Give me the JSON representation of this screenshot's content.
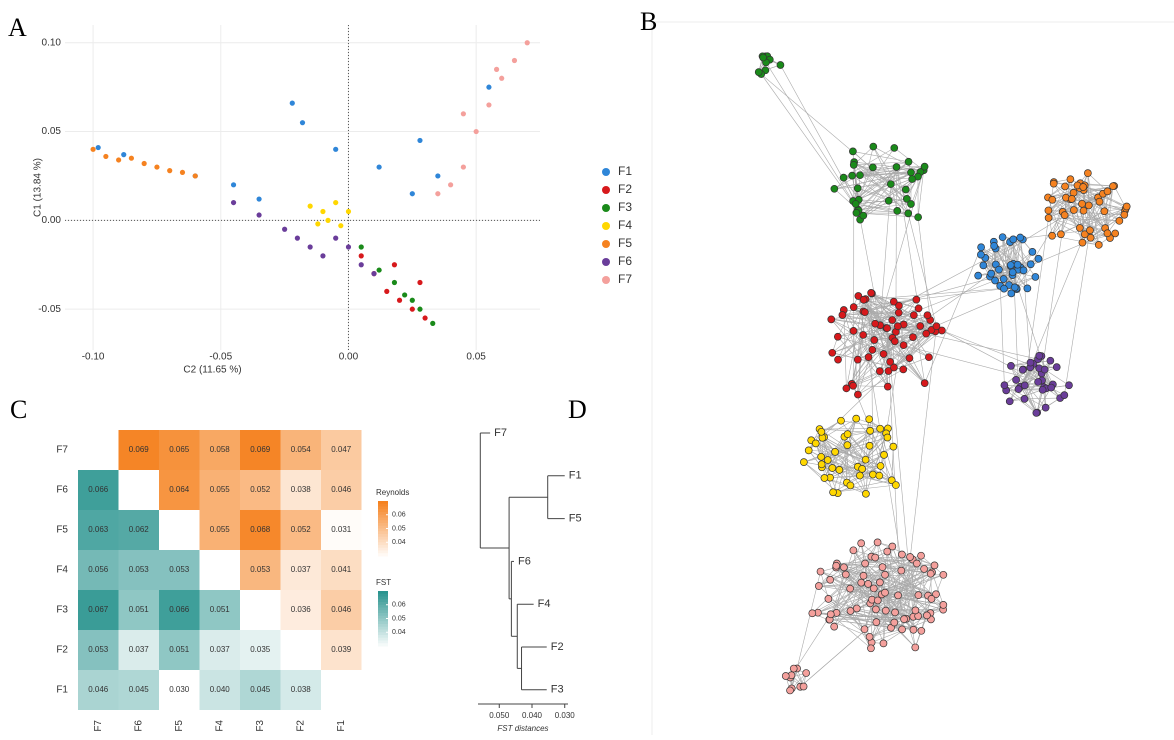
{
  "chart_data": [
    {
      "type": "scatter",
      "label": "A",
      "xlabel": "C2 (11.65 %)",
      "ylabel": "C1 (13.84 %)",
      "xlim": [
        -0.111,
        0.075
      ],
      "ylim": [
        -0.073,
        0.11
      ],
      "xticks": [
        {
          "value": -0.1,
          "label": "-0.10"
        },
        -0.05,
        {
          "value": 0,
          "label": "0.00"
        },
        0.05
      ],
      "yticks": [
        -0.05,
        {
          "value": 0,
          "label": "0.00"
        },
        0.05,
        {
          "value": 0.1,
          "label": "0.10"
        }
      ],
      "grid": true,
      "zero_lines": true,
      "legend": "right",
      "series": [
        {
          "name": "F1",
          "color": "#2f86d8",
          "x": [
            -0.098,
            -0.088,
            -0.06,
            -0.045,
            -0.035,
            -0.022,
            -0.018,
            -0.005,
            0.012,
            0.025,
            0.035,
            0.028,
            0.055
          ],
          "y": [
            0.041,
            0.037,
            0.025,
            0.02,
            0.012,
            0.066,
            0.055,
            0.04,
            0.03,
            0.015,
            0.025,
            0.045,
            0.075
          ]
        },
        {
          "name": "F2",
          "color": "#d7191c",
          "x": [
            0.005,
            0.01,
            0.015,
            0.02,
            0.025,
            0.03,
            0.018,
            0.028
          ],
          "y": [
            -0.02,
            -0.03,
            -0.04,
            -0.045,
            -0.05,
            -0.055,
            -0.025,
            -0.035
          ]
        },
        {
          "name": "F3",
          "color": "#1a8a1a",
          "x": [
            0.005,
            0.012,
            0.018,
            0.022,
            0.028,
            0.033,
            0.025
          ],
          "y": [
            -0.015,
            -0.028,
            -0.035,
            -0.042,
            -0.05,
            -0.058,
            -0.045
          ]
        },
        {
          "name": "F4",
          "color": "#ffd700",
          "x": [
            -0.015,
            -0.01,
            -0.008,
            -0.005,
            -0.003,
            0,
            -0.012
          ],
          "y": [
            0.008,
            0.005,
            0,
            0.01,
            -0.003,
            0.005,
            -0.002
          ]
        },
        {
          "name": "F5",
          "color": "#f58220",
          "x": [
            -0.1,
            -0.095,
            -0.09,
            -0.085,
            -0.08,
            -0.075,
            -0.07,
            -0.065,
            -0.06
          ],
          "y": [
            0.04,
            0.036,
            0.034,
            0.035,
            0.032,
            0.03,
            0.028,
            0.027,
            0.025
          ]
        },
        {
          "name": "F6",
          "color": "#6a3d9a",
          "x": [
            -0.045,
            -0.035,
            -0.025,
            -0.02,
            -0.015,
            -0.01,
            0,
            0.005,
            0.01,
            -0.005
          ],
          "y": [
            0.01,
            0.003,
            -0.005,
            -0.01,
            -0.015,
            -0.02,
            -0.015,
            -0.025,
            -0.03,
            -0.01
          ]
        },
        {
          "name": "F7",
          "color": "#f4a09c",
          "x": [
            0.035,
            0.04,
            0.045,
            0.05,
            0.055,
            0.06,
            0.065,
            0.07,
            0.045,
            0.058
          ],
          "y": [
            0.015,
            0.02,
            0.03,
            0.05,
            0.065,
            0.08,
            0.09,
            0.1,
            0.06,
            0.085
          ]
        }
      ]
    },
    {
      "type": "network",
      "label": "B"
    },
    {
      "type": "heatmap",
      "label": "C",
      "rows": [
        "F7",
        "F6",
        "F5",
        "F4",
        "F3",
        "F2",
        "F1"
      ],
      "columns": [
        "F7",
        "F6",
        "F5",
        "F4",
        "F3",
        "F2",
        "F1"
      ],
      "values": [
        [
          null,
          0.069,
          0.065,
          0.058,
          0.069,
          0.054,
          0.047
        ],
        [
          0.066,
          null,
          0.064,
          0.055,
          0.052,
          0.038,
          0.046
        ],
        [
          0.063,
          0.062,
          null,
          0.055,
          0.068,
          0.052,
          0.031
        ],
        [
          0.056,
          0.053,
          0.053,
          null,
          0.053,
          0.037,
          0.041
        ],
        [
          0.067,
          0.051,
          0.066,
          0.051,
          null,
          0.036,
          0.046
        ],
        [
          0.053,
          0.037,
          0.051,
          0.037,
          0.035,
          null,
          0.039
        ],
        [
          0.046,
          0.045,
          0.03,
          0.04,
          0.045,
          0.038,
          null
        ]
      ],
      "value_labels": [
        [
          null,
          "0.069",
          "0.065",
          "0.058",
          "0.069",
          "0.054",
          "0.047"
        ],
        [
          "0.066",
          null,
          "0.064",
          "0.055",
          "0.052",
          "0.038",
          "0.046"
        ],
        [
          "0.063",
          "0.062",
          null,
          "0.055",
          "0.068",
          "0.052",
          "0.031"
        ],
        [
          "0.056",
          "0.053",
          "0.053",
          null,
          "0.053",
          "0.037",
          "0.041"
        ],
        [
          "0.067",
          "0.051",
          "0.066",
          "0.051",
          null,
          "0.036",
          "0.046"
        ],
        [
          "0.053",
          "0.037",
          "0.051",
          "0.037",
          "0.035",
          null,
          "0.039"
        ],
        [
          "0.046",
          "0.045",
          "0.030",
          "0.040",
          "0.045",
          "0.038",
          null
        ]
      ],
      "legends": [
        {
          "title": "Reynolds",
          "triangle": "upper",
          "color": "#f58220",
          "lim": [
            0.03,
            0.07
          ],
          "ticks": [
            0.06,
            0.05,
            0.04
          ]
        },
        {
          "title": "FST",
          "triangle": "lower",
          "color": "#2a948f",
          "lim": [
            0.03,
            0.07
          ],
          "ticks": [
            0.06,
            0.05,
            0.04
          ]
        }
      ]
    },
    {
      "type": "dendrogram",
      "label": "D",
      "xlabel": "FST distances",
      "xlim": [
        0.0565,
        0.029
      ],
      "xticks": [
        {
          "value": 0.05,
          "label": "0.050"
        },
        {
          "value": 0.04,
          "label": "0.040"
        },
        {
          "value": 0.03,
          "label": "0.030"
        }
      ],
      "tree": {
        "height": 0.0558,
        "children": [
          {
            "name": "F7",
            "height": 0.0528
          },
          {
            "height": 0.047,
            "children": [
              {
                "height": 0.0352,
                "children": [
                  {
                    "name": "F1",
                    "height": 0.03
                  },
                  {
                    "name": "F5",
                    "height": 0.03
                  }
                ]
              },
              {
                "height": 0.0463,
                "children": [
                  {
                    "name": "F6",
                    "height": 0.0455
                  },
                  {
                    "height": 0.0445,
                    "children": [
                      {
                        "name": "F4",
                        "height": 0.0395
                      },
                      {
                        "height": 0.0432,
                        "children": [
                          {
                            "name": "F2",
                            "height": 0.0355
                          },
                          {
                            "name": "F3",
                            "height": 0.0355
                          }
                        ]
                      }
                    ]
                  }
                ]
              }
            ]
          }
        ]
      }
    }
  ]
}
